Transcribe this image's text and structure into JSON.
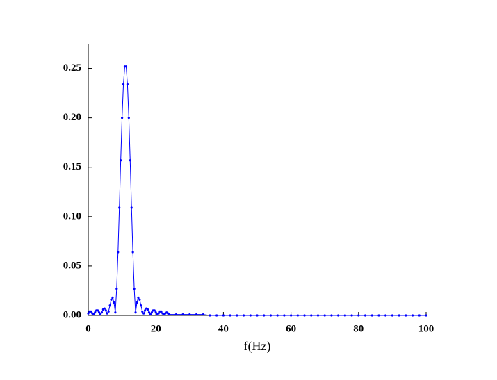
{
  "chart_data": {
    "type": "line",
    "xlabel": "f(Hz)",
    "x": [
      0.0,
      0.4,
      0.8,
      1.2,
      1.6,
      2.0,
      2.4,
      2.8,
      3.2,
      3.6,
      4.0,
      4.4,
      4.8,
      5.2,
      5.6,
      6.0,
      6.4,
      6.8,
      7.2,
      7.6,
      8.0,
      8.4,
      8.8,
      9.2,
      9.6,
      10.0,
      10.4,
      10.8,
      11.2,
      11.6,
      12.0,
      12.4,
      12.8,
      13.2,
      13.6,
      14.0,
      14.4,
      14.8,
      15.2,
      15.6,
      16.0,
      16.4,
      16.8,
      17.2,
      17.6,
      18.0,
      18.4,
      18.8,
      19.2,
      19.6,
      20.0,
      20.4,
      20.8,
      21.2,
      21.6,
      22.0,
      22.4,
      22.8,
      23.2,
      23.6,
      24.0,
      26,
      28,
      30,
      32,
      34,
      36,
      38,
      40,
      42,
      44,
      46,
      48,
      50,
      52,
      54,
      56,
      58,
      60,
      62,
      64,
      66,
      68,
      70,
      72,
      74,
      76,
      78,
      80,
      82,
      84,
      86,
      88,
      90,
      92,
      94,
      96,
      98,
      100
    ],
    "series": [
      {
        "color": "#0000ff",
        "values": [
          0.002,
          0.004,
          0.004,
          0.002,
          0.001,
          0.003,
          0.005,
          0.005,
          0.003,
          0.001,
          0.003,
          0.006,
          0.007,
          0.005,
          0.002,
          0.004,
          0.01,
          0.016,
          0.018,
          0.013,
          0.003,
          0.027,
          0.064,
          0.109,
          0.157,
          0.2,
          0.234,
          0.252,
          0.252,
          0.234,
          0.2,
          0.157,
          0.109,
          0.064,
          0.027,
          0.003,
          0.013,
          0.018,
          0.016,
          0.01,
          0.004,
          0.002,
          0.005,
          0.007,
          0.006,
          0.003,
          0.001,
          0.003,
          0.005,
          0.005,
          0.003,
          0.001,
          0.002,
          0.004,
          0.004,
          0.002,
          0.001,
          0.002,
          0.003,
          0.002,
          0.001,
          0.001,
          0.001,
          0.001,
          0.001,
          0.001,
          0,
          0,
          0,
          0,
          0,
          0,
          0,
          0,
          0,
          0,
          0,
          0,
          0,
          0,
          0,
          0,
          0,
          0,
          0,
          0,
          0,
          0,
          0,
          0,
          0,
          0,
          0,
          0,
          0,
          0,
          0,
          0,
          0
        ]
      }
    ],
    "xlim": [
      0,
      100
    ],
    "xticks": [
      0,
      20,
      40,
      60,
      80,
      100
    ],
    "ylim": [
      0,
      0.275
    ],
    "yticks": [
      {
        "value": 0,
        "label": "0.00"
      },
      {
        "value": 0.05,
        "label": "0.05"
      },
      {
        "value": 0.1,
        "label": "0.10"
      },
      {
        "value": 0.15,
        "label": "0.15"
      },
      {
        "value": 0.2,
        "label": "0.20"
      },
      {
        "value": 0.25,
        "label": "0.25"
      }
    ]
  }
}
